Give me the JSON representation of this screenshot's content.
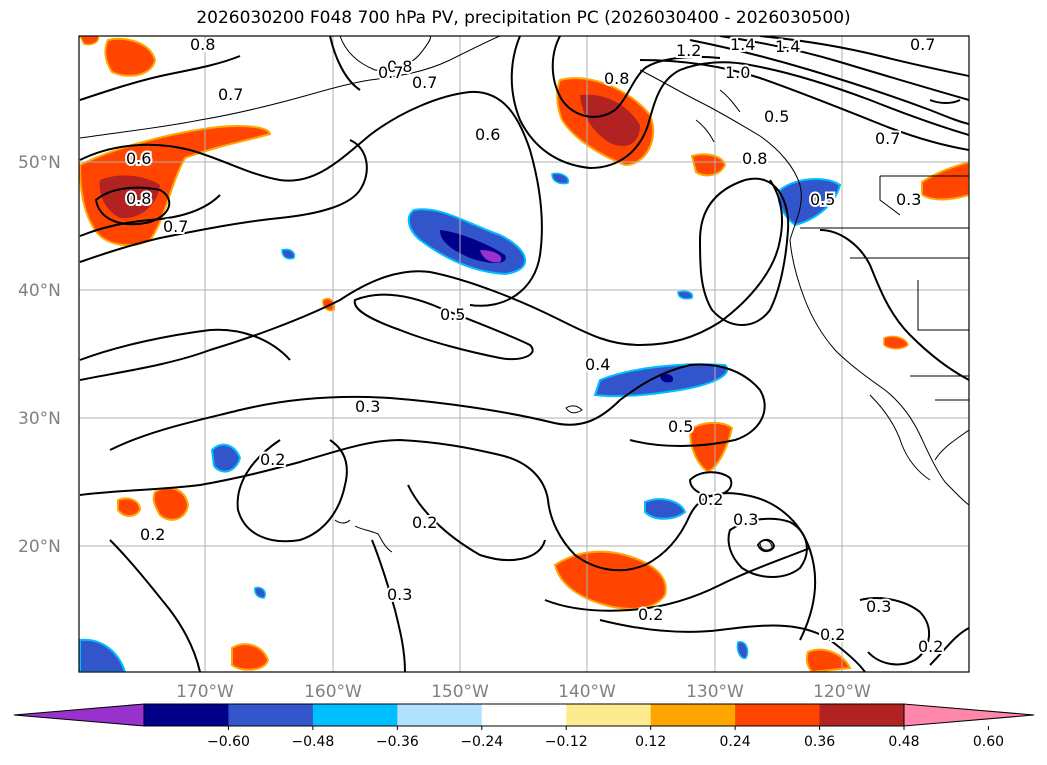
{
  "title": "2026030200 F048 700 hPa PV, precipitation PC (2026030400 - 2026030500)",
  "map": {
    "lat_labels": [
      "50°N",
      "40°N",
      "30°N",
      "20°N"
    ],
    "lon_labels": [
      "170°W",
      "160°W",
      "150°W",
      "140°W",
      "130°W",
      "120°W"
    ],
    "contour_labels": [
      "0.8",
      "0.7",
      "0.8",
      "0.7",
      "0.6",
      "0.8",
      "1.2",
      "1.4",
      "1.4",
      "1.0",
      "0.5",
      "0.7",
      "0.8",
      "0.7",
      "0.6",
      "0.8",
      "0.7",
      "0.5",
      "0.3",
      "0.5",
      "0.4",
      "0.3",
      "0.5",
      "0.2",
      "0.2",
      "0.2",
      "0.3",
      "0.3",
      "0.2",
      "0.2",
      "0.3",
      "0.2",
      "0.2",
      "0.7"
    ]
  },
  "colorbar": {
    "ticks": [
      "−0.60",
      "−0.48",
      "−0.36",
      "−0.24",
      "−0.12",
      "0.12",
      "0.24",
      "0.36",
      "0.48",
      "0.60"
    ],
    "colors": [
      "#9932cc",
      "#00008b",
      "#3355cc",
      "#00bfff",
      "#b0e2ff",
      "#ffffff",
      "#ffeb8f",
      "#ffa500",
      "#ff4500",
      "#b22222",
      "#ff88aa"
    ]
  }
}
